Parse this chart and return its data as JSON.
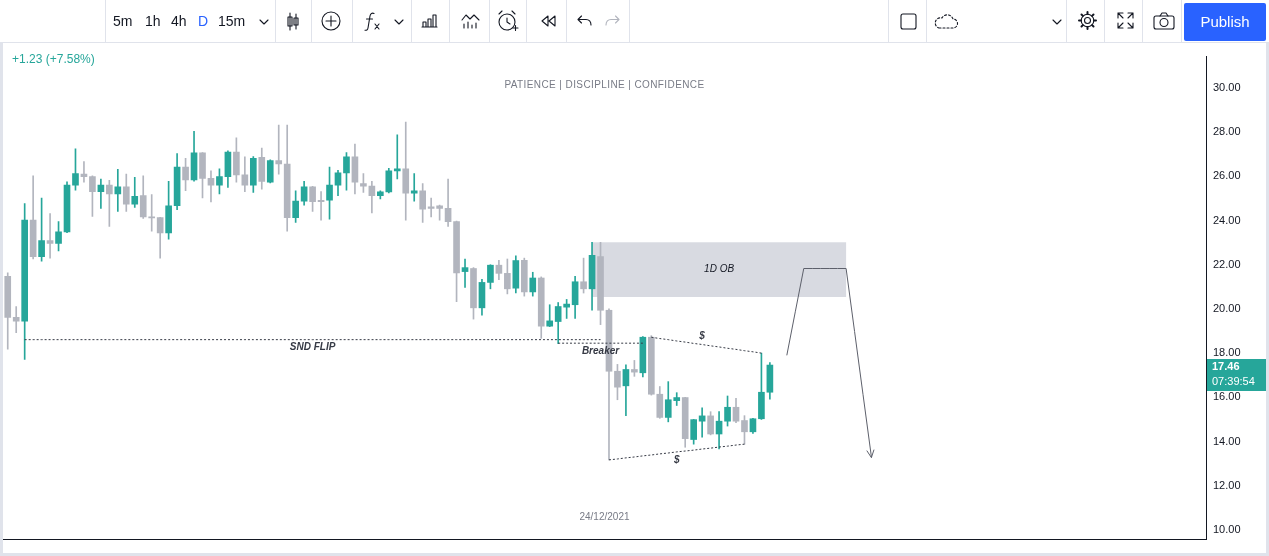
{
  "chart_data": {
    "type": "candlestick",
    "subtitle": "PATIENCE | DISCIPLINE | CONFIDENCE",
    "categories": [
      null,
      null,
      null,
      null,
      null,
      null,
      null,
      null,
      null,
      null,
      null,
      null,
      null,
      null,
      null,
      null,
      null,
      null,
      null,
      null,
      null,
      null,
      null,
      null,
      null,
      null,
      null,
      null,
      null,
      null,
      null,
      null,
      null,
      null,
      null,
      null,
      null,
      null,
      null,
      null,
      null,
      null,
      null,
      null,
      null,
      null,
      null,
      null,
      null,
      null,
      null,
      null,
      null,
      null,
      null,
      null,
      null,
      null,
      null,
      null,
      null,
      null,
      null,
      null,
      null,
      null,
      null,
      null,
      null,
      null,
      null,
      null,
      null,
      null,
      null,
      null,
      null,
      null,
      null,
      null,
      null,
      null,
      null,
      null,
      null,
      null,
      null,
      null,
      null,
      null,
      null,
      null,
      null,
      null,
      null,
      null,
      null,
      null,
      null,
      null,
      null,
      null,
      null,
      null,
      null,
      null,
      null,
      null,
      null,
      null,
      null,
      null,
      null,
      null,
      null,
      null,
      null,
      null,
      null,
      null,
      null,
      null,
      null,
      null,
      null,
      null,
      null,
      null,
      null,
      null,
      null,
      null,
      null,
      null,
      null,
      null,
      null,
      null,
      null,
      null,
      null,
      null
    ],
    "ohlc": [
      [
        21.48,
        21.63,
        18.18,
        19.62
      ],
      [
        19.62,
        20.11,
        18.93,
        19.45
      ],
      [
        19.45,
        24.77,
        17.71,
        24.02
      ],
      [
        24.02,
        26.02,
        22.26,
        22.37
      ],
      [
        22.37,
        25.02,
        22.16,
        23.09
      ],
      [
        23.09,
        24.31,
        22.3,
        22.97
      ],
      [
        22.97,
        23.95,
        22.63,
        23.49
      ],
      [
        23.49,
        25.75,
        23.45,
        25.6
      ],
      [
        25.6,
        27.25,
        25.38,
        26.13
      ],
      [
        26.1,
        26.67,
        25.74,
        25.99
      ],
      [
        25.99,
        26.02,
        24.19,
        25.31
      ],
      [
        25.31,
        25.88,
        24.55,
        25.6
      ],
      [
        25.6,
        25.82,
        23.74,
        25.21
      ],
      [
        25.21,
        26.32,
        24.41,
        25.53
      ],
      [
        25.53,
        26.1,
        24.41,
        24.74
      ],
      [
        24.74,
        25.96,
        24.6,
        25.1
      ],
      [
        25.13,
        26.02,
        24.1,
        24.17
      ],
      [
        24.16,
        25.17,
        23.52,
        24.12
      ],
      [
        24.13,
        24.15,
        22.3,
        23.44
      ],
      [
        23.44,
        25.78,
        23.16,
        24.67
      ],
      [
        24.67,
        27.03,
        24.49,
        26.42
      ],
      [
        26.42,
        26.82,
        25.35,
        25.84
      ],
      [
        25.84,
        28.04,
        25.78,
        27.06
      ],
      [
        27.06,
        27.08,
        25.02,
        25.91
      ],
      [
        25.91,
        26.25,
        24.84,
        25.6
      ],
      [
        25.6,
        26.34,
        25.21,
        25.99
      ],
      [
        25.99,
        27.15,
        25.5,
        27.1
      ],
      [
        27.1,
        27.74,
        25.74,
        26.07
      ],
      [
        26.07,
        26.88,
        25.31,
        25.6
      ],
      [
        25.6,
        26.9,
        25.27,
        26.82
      ],
      [
        26.86,
        27.28,
        25.42,
        25.77
      ],
      [
        25.74,
        26.75,
        25.7,
        26.71
      ],
      [
        26.71,
        28.32,
        26.1,
        26.56
      ],
      [
        26.56,
        28.32,
        23.52,
        24.13
      ],
      [
        24.13,
        25.35,
        23.92,
        24.88
      ],
      [
        24.88,
        25.78,
        24.7,
        25.53
      ],
      [
        25.53,
        25.55,
        24.41,
        24.85
      ],
      [
        24.92,
        25.31,
        24.02,
        24.85
      ],
      [
        24.92,
        26.42,
        24.06,
        25.6
      ],
      [
        25.6,
        26.27,
        25.13,
        26.16
      ],
      [
        26.16,
        27.08,
        25.38,
        26.88
      ],
      [
        26.88,
        27.46,
        25.21,
        25.74
      ],
      [
        25.67,
        26.13,
        25.27,
        25.56
      ],
      [
        25.56,
        25.78,
        24.35,
        25.13
      ],
      [
        25.13,
        25.35,
        24.98,
        25.3
      ],
      [
        25.3,
        26.36,
        25.25,
        26.25
      ],
      [
        26.25,
        27.88,
        25.88,
        26.34
      ],
      [
        26.34,
        28.46,
        24.02,
        25.24
      ],
      [
        25.24,
        26.13,
        24.88,
        25.34
      ],
      [
        25.34,
        25.67,
        23.92,
        24.52
      ],
      [
        24.62,
        25.02,
        24.16,
        24.55
      ],
      [
        24.67,
        24.7,
        24.02,
        24.55
      ],
      [
        24.55,
        25.88,
        23.74,
        23.95
      ],
      [
        23.95,
        23.98,
        20.33,
        21.63
      ],
      [
        21.69,
        22.26,
        20.97,
        21.87
      ],
      [
        21.83,
        21.87,
        19.54,
        20.05
      ],
      [
        20.05,
        21.34,
        19.72,
        21.2
      ],
      [
        21.2,
        22.0,
        20.91,
        21.98
      ],
      [
        21.98,
        22.2,
        21.33,
        21.61
      ],
      [
        21.61,
        22.26,
        20.68,
        20.91
      ],
      [
        20.94,
        22.4,
        20.72,
        22.19
      ],
      [
        22.2,
        22.3,
        20.58,
        20.77
      ],
      [
        20.77,
        21.66,
        20.58,
        21.4
      ],
      [
        21.4,
        21.45,
        18.67,
        19.22
      ],
      [
        19.22,
        20.19,
        19.2,
        19.46
      ],
      [
        19.43,
        20.29,
        18.43,
        20.11
      ],
      [
        20.08,
        20.43,
        19.57,
        20.22
      ],
      [
        20.19,
        21.48,
        19.57,
        21.23
      ],
      [
        21.23,
        22.3,
        20.72,
        20.91
      ],
      [
        20.91,
        23.02,
        19.94,
        22.43
      ],
      [
        22.37,
        23.02,
        19.29,
        19.94
      ],
      [
        19.94,
        20.0,
        13.17,
        17.18
      ],
      [
        17.18,
        17.49,
        15.89,
        16.46
      ],
      [
        16.52,
        17.47,
        15.17,
        17.26
      ],
      [
        17.26,
        17.67,
        16.95,
        17.14
      ],
      [
        17.11,
        18.75,
        16.92,
        18.72
      ],
      [
        18.72,
        18.79,
        16.1,
        16.14
      ],
      [
        16.14,
        16.49,
        15.05,
        15.09
      ],
      [
        15.09,
        16.71,
        14.89,
        15.89
      ],
      [
        15.85,
        16.21,
        15.63,
        15.99
      ],
      [
        15.99,
        16.0,
        13.74,
        14.13
      ],
      [
        14.09,
        15.0,
        13.88,
        14.99
      ],
      [
        14.92,
        15.52,
        14.2,
        15.16
      ],
      [
        15.16,
        15.35,
        14.3,
        14.34
      ],
      [
        14.34,
        15.35,
        13.66,
        14.92
      ],
      [
        14.92,
        16.06,
        14.7,
        15.55
      ],
      [
        15.55,
        15.95,
        14.85,
        14.92
      ],
      [
        14.95,
        15.17,
        13.88,
        14.44
      ],
      [
        14.44,
        15.05,
        14.37,
        15.03
      ],
      [
        15.03,
        18.0,
        15.0,
        16.23
      ],
      [
        16.23,
        17.57,
        15.92,
        17.46
      ],
      null,
      null,
      null,
      null,
      null,
      null,
      null,
      null,
      null,
      null,
      null,
      null,
      null,
      null,
      null,
      null,
      null,
      null,
      null,
      null,
      null,
      null,
      null,
      null,
      null,
      null,
      null,
      null,
      null,
      null,
      null,
      null,
      null,
      null,
      null,
      null,
      null,
      null,
      null,
      null,
      null,
      null,
      null,
      null,
      null,
      null,
      null,
      null,
      null,
      null,
      null
    ],
    "colors": [
      "#b2b5be",
      "#b2b5be",
      "#26a69a",
      "#b2b5be",
      "#26a69a",
      "#b2b5be",
      "#26a69a",
      "#26a69a",
      "#26a69a",
      "#b2b5be",
      "#b2b5be",
      "#26a69a",
      "#b2b5be",
      "#26a69a",
      "#b2b5be",
      "#26a69a",
      "#b2b5be",
      "#b2b5be",
      "#b2b5be",
      "#26a69a",
      "#26a69a",
      "#b2b5be",
      "#26a69a",
      "#b2b5be",
      "#b2b5be",
      "#26a69a",
      "#26a69a",
      "#b2b5be",
      "#b2b5be",
      "#26a69a",
      "#b2b5be",
      "#26a69a",
      "#b2b5be",
      "#b2b5be",
      "#26a69a",
      "#26a69a",
      "#b2b5be",
      "#b2b5be",
      "#26a69a",
      "#26a69a",
      "#26a69a",
      "#b2b5be",
      "#b2b5be",
      "#b2b5be",
      "#26a69a",
      "#26a69a",
      "#26a69a",
      "#b2b5be",
      "#26a69a",
      "#b2b5be",
      "#b2b5be",
      "#b2b5be",
      "#b2b5be",
      "#b2b5be",
      "#26a69a",
      "#b2b5be",
      "#26a69a",
      "#26a69a",
      "#b2b5be",
      "#b2b5be",
      "#26a69a",
      "#b2b5be",
      "#26a69a",
      "#b2b5be",
      "#26a69a",
      "#26a69a",
      "#26a69a",
      "#26a69a",
      "#b2b5be",
      "#26a69a",
      "#b2b5be",
      "#b2b5be",
      "#b2b5be",
      "#26a69a",
      "#b2b5be",
      "#26a69a",
      "#b2b5be",
      "#b2b5be",
      "#26a69a",
      "#26a69a",
      "#b2b5be",
      "#26a69a",
      "#26a69a",
      "#b2b5be",
      "#26a69a",
      "#26a69a",
      "#b2b5be",
      "#b2b5be",
      "#26a69a",
      "#26a69a",
      "#26a69a",
      null,
      null,
      null,
      null,
      null,
      null,
      null,
      null,
      null,
      null,
      null,
      null,
      null,
      null,
      null,
      null,
      null,
      null,
      null,
      null,
      null,
      null,
      null,
      null,
      null,
      null,
      null,
      null,
      null,
      null,
      null,
      null,
      null,
      null,
      null,
      null,
      null,
      null,
      null,
      null,
      null,
      null,
      null,
      null,
      null,
      null,
      null,
      null,
      null,
      null,
      null
    ],
    "series": [
      {
        "name": "SND FLIP",
        "type": "line",
        "color": "#363a45",
        "line_style": "dotted",
        "values": [
          null,
          null,
          18.61,
          18.61,
          18.61,
          18.61,
          18.61,
          18.61,
          18.61,
          18.61,
          18.61,
          18.61,
          18.61,
          18.61,
          18.61,
          18.61,
          18.61,
          18.61,
          18.61,
          18.61,
          18.61,
          18.61,
          18.61,
          18.61,
          18.61,
          18.61,
          18.61,
          18.61,
          18.61,
          18.61,
          18.61,
          18.61,
          18.61,
          18.61,
          18.61,
          18.61,
          18.61,
          18.61,
          18.61,
          18.61,
          18.61,
          18.61,
          18.61,
          18.61,
          18.61,
          18.61,
          18.61,
          18.61,
          18.61,
          18.61,
          18.61,
          18.61,
          18.61,
          18.61,
          18.61,
          18.61,
          18.61,
          18.61,
          18.61,
          18.61,
          18.61,
          18.61,
          18.61,
          18.61,
          18.61,
          18.61,
          18.61,
          18.61,
          18.61,
          18.61,
          18.61,
          null,
          null,
          null,
          null,
          null,
          null,
          null,
          null,
          null,
          null,
          null,
          null,
          null,
          null,
          null,
          null,
          null,
          null,
          null,
          null,
          null,
          null,
          null,
          null,
          null,
          null,
          null,
          null,
          null,
          null,
          null,
          null,
          null,
          null,
          null,
          null,
          null,
          null,
          null,
          null,
          null,
          null,
          null,
          null,
          null,
          null,
          null,
          null,
          null,
          null,
          null,
          null,
          null,
          null,
          null,
          null,
          null,
          null,
          null,
          null,
          null,
          null,
          null,
          null,
          null,
          null,
          null,
          null,
          null,
          null,
          null
        ]
      },
      {
        "name": "Breaker",
        "type": "line",
        "color": "#363a45",
        "line_style": "dotted",
        "values": [
          null,
          null,
          null,
          null,
          null,
          null,
          null,
          null,
          null,
          null,
          null,
          null,
          null,
          null,
          null,
          null,
          null,
          null,
          null,
          null,
          null,
          null,
          null,
          null,
          null,
          null,
          null,
          null,
          null,
          null,
          null,
          null,
          null,
          null,
          null,
          null,
          null,
          null,
          null,
          null,
          null,
          null,
          null,
          null,
          null,
          null,
          null,
          null,
          null,
          null,
          null,
          null,
          null,
          null,
          null,
          null,
          null,
          null,
          null,
          null,
          null,
          null,
          null,
          null,
          null,
          18.45,
          18.45,
          18.45,
          18.45,
          18.45,
          18.45,
          18.45,
          18.45,
          18.45,
          18.45,
          18.45,
          null,
          null,
          null,
          null,
          null,
          null,
          null,
          null,
          null,
          null,
          null,
          null,
          null,
          null,
          null,
          null,
          null,
          null,
          null,
          null,
          null,
          null,
          null,
          null,
          null,
          null,
          null,
          null,
          null,
          null,
          null,
          null,
          null,
          null,
          null,
          null,
          null,
          null,
          null,
          null,
          null,
          null,
          null,
          null,
          null,
          null,
          null,
          null,
          null,
          null,
          null,
          null,
          null,
          null,
          null,
          null,
          null,
          null,
          null,
          null,
          null,
          null,
          null,
          null,
          null,
          null
        ]
      },
      {
        "name": "$",
        "type": "line",
        "color": "#363a45",
        "line_style": "dotted",
        "values": [
          null,
          null,
          null,
          null,
          null,
          null,
          null,
          null,
          null,
          null,
          null,
          null,
          null,
          null,
          null,
          null,
          null,
          null,
          null,
          null,
          null,
          null,
          null,
          null,
          null,
          null,
          null,
          null,
          null,
          null,
          null,
          null,
          null,
          null,
          null,
          null,
          null,
          null,
          null,
          null,
          null,
          null,
          null,
          null,
          null,
          null,
          null,
          null,
          null,
          null,
          null,
          null,
          null,
          null,
          null,
          null,
          null,
          null,
          null,
          null,
          null,
          null,
          null,
          null,
          null,
          null,
          null,
          null,
          null,
          null,
          null,
          null,
          null,
          null,
          null,
          null,
          18.72,
          18.66,
          18.61,
          18.55,
          18.5,
          18.44,
          18.39,
          18.33,
          18.28,
          18.22,
          18.17,
          18.11,
          18.06,
          18.0,
          null,
          null,
          null,
          null,
          null,
          null,
          null,
          null,
          null,
          null,
          null,
          null,
          null,
          null,
          null,
          null,
          null,
          null,
          null,
          null,
          null,
          null,
          null,
          null,
          null,
          null,
          null,
          null,
          null,
          null,
          null,
          null,
          null,
          null,
          null,
          null,
          null,
          null,
          null,
          null,
          null,
          null,
          null,
          null,
          null,
          null,
          null,
          null,
          null,
          null,
          null,
          null
        ]
      },
      {
        "name": "$",
        "type": "line",
        "color": "#363a45",
        "line_style": "dotted",
        "values": [
          null,
          null,
          null,
          null,
          null,
          null,
          null,
          null,
          null,
          null,
          null,
          null,
          null,
          null,
          null,
          null,
          null,
          null,
          null,
          null,
          null,
          null,
          null,
          null,
          null,
          null,
          null,
          null,
          null,
          null,
          null,
          null,
          null,
          null,
          null,
          null,
          null,
          null,
          null,
          null,
          null,
          null,
          null,
          null,
          null,
          null,
          null,
          null,
          null,
          null,
          null,
          null,
          null,
          null,
          null,
          null,
          null,
          null,
          null,
          null,
          null,
          null,
          null,
          null,
          null,
          null,
          null,
          null,
          null,
          null,
          null,
          13.17,
          13.21,
          13.26,
          13.3,
          13.35,
          13.39,
          13.44,
          13.48,
          13.53,
          13.57,
          13.61,
          13.66,
          13.7,
          13.75,
          13.79,
          13.84,
          13.88,
          null,
          null,
          null,
          null,
          null,
          null,
          null,
          null,
          null,
          null,
          null,
          null,
          null,
          null,
          null,
          null,
          null,
          null,
          null,
          null,
          null,
          null,
          null,
          null,
          null,
          null,
          null,
          null,
          null,
          null,
          null,
          null,
          null,
          null,
          null,
          null,
          null,
          null,
          null,
          null,
          null,
          null,
          null,
          null,
          null,
          null,
          null,
          null,
          null,
          null,
          null,
          null,
          null,
          null
        ]
      },
      {
        "type": "line",
        "color": "#5d606b",
        "line_style": "solid",
        "values": [
          null,
          null,
          null,
          null,
          null,
          null,
          null,
          null,
          null,
          null,
          null,
          null,
          null,
          null,
          null,
          null,
          null,
          null,
          null,
          null,
          null,
          null,
          null,
          null,
          null,
          null,
          null,
          null,
          null,
          null,
          null,
          null,
          null,
          null,
          null,
          null,
          null,
          null,
          null,
          null,
          null,
          null,
          null,
          null,
          null,
          null,
          null,
          null,
          null,
          null,
          null,
          null,
          null,
          null,
          null,
          null,
          null,
          null,
          null,
          null,
          null,
          null,
          null,
          null,
          null,
          null,
          null,
          null,
          null,
          null,
          null,
          null,
          null,
          null,
          null,
          null,
          null,
          null,
          null,
          null,
          null,
          null,
          null,
          null,
          null,
          null,
          null,
          null,
          null,
          null,
          null,
          null,
          17.9,
          19.87,
          21.83,
          21.83,
          21.83,
          21.83,
          21.83,
          21.83,
          18.98,
          16.12,
          13.27,
          null,
          null,
          null,
          null,
          null,
          null,
          null,
          null,
          null,
          null,
          null,
          null,
          null,
          null,
          null,
          null,
          null,
          null,
          null,
          null,
          null,
          null,
          null,
          null,
          null,
          null,
          null,
          null,
          null,
          null,
          null,
          null,
          null,
          null,
          null,
          null,
          null,
          null,
          null
        ]
      }
    ],
    "bands": [
      {
        "axis": "y",
        "from": 20.54,
        "to": 23.02,
        "label": "1D OB",
        "color": "#d1d4dc"
      }
    ],
    "ylim": [
      9.57,
      31.42
    ],
    "yticks": [
      {
        "value": 10,
        "label": "10.00"
      },
      {
        "value": 12,
        "label": "12.00"
      },
      {
        "value": 14,
        "label": "14.00"
      },
      {
        "value": 16,
        "label": "16.00"
      },
      {
        "value": 18,
        "label": "18.00"
      },
      {
        "value": 20,
        "label": "20.00"
      },
      {
        "value": 22,
        "label": "22.00"
      },
      {
        "value": 24,
        "label": "24.00"
      },
      {
        "value": 26,
        "label": "26.00"
      },
      {
        "value": 28,
        "label": "28.00"
      },
      {
        "value": 30,
        "label": "30.00"
      }
    ],
    "annotations": [
      "+1.23 (+7.58%)",
      "17.46",
      "07:39:54",
      "24/12/2021",
      "5m",
      "1h",
      "4h",
      "D",
      "15m",
      "Publish"
    ],
    "tick_labels": "y",
    "marker": "none"
  }
}
